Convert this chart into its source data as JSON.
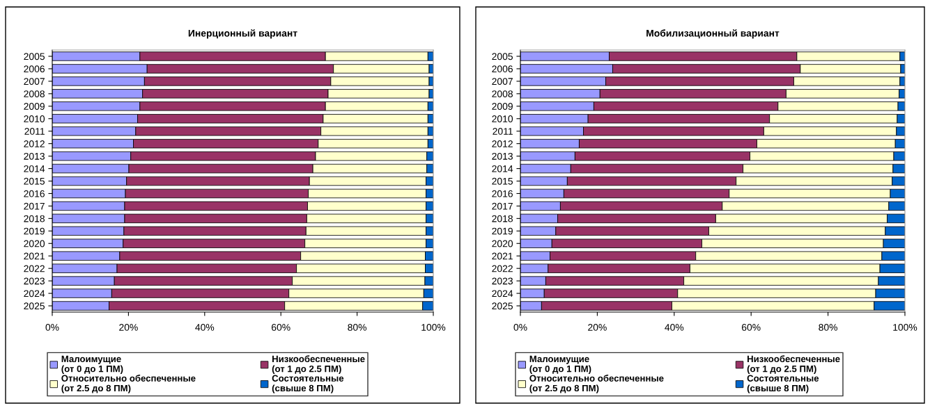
{
  "chart_data": [
    {
      "type": "bar",
      "title": "Инерционный вариант",
      "orientation": "horizontal",
      "stacked": true,
      "legend": "bottom",
      "grid": false,
      "categories": [
        "2005",
        "2006",
        "2007",
        "2008",
        "2009",
        "2010",
        "2011",
        "2012",
        "2013",
        "2014",
        "2015",
        "2016",
        "2017",
        "2018",
        "2019",
        "2020",
        "2021",
        "2022",
        "2023",
        "2024",
        "2025"
      ],
      "xlim": [
        0,
        100
      ],
      "xticks": [
        {
          "value": 0,
          "label": "0%"
        },
        {
          "value": 20,
          "label": "20%"
        },
        {
          "value": 40,
          "label": "40%"
        },
        {
          "value": 60,
          "label": "60%"
        },
        {
          "value": 80,
          "label": "80%"
        },
        {
          "value": 100,
          "label": "100%"
        }
      ],
      "series": [
        {
          "name": "Малоимущие\n(от 0 до 1 ПМ)",
          "color": "#9999ff",
          "values": [
            23.0,
            24.9,
            24.2,
            23.7,
            23.0,
            22.4,
            21.9,
            21.3,
            20.6,
            20.1,
            19.5,
            19.2,
            19.0,
            19.0,
            18.8,
            18.6,
            17.7,
            17.0,
            16.3,
            15.6,
            14.9
          ]
        },
        {
          "name": "Низкообеспеченные\n(от 1 до 2.5 ПМ)",
          "color": "#993366",
          "values": [
            48.7,
            48.9,
            48.9,
            48.7,
            48.7,
            48.7,
            48.6,
            48.5,
            48.5,
            48.3,
            48.0,
            48.0,
            48.0,
            47.8,
            47.8,
            47.7,
            47.5,
            47.1,
            46.7,
            46.5,
            46.1
          ]
        },
        {
          "name": "Относительно обеспеченные\n(от 2.5 до 8 ПМ)",
          "color": "#ffffcc",
          "values": [
            26.9,
            25.1,
            25.8,
            26.5,
            26.9,
            27.5,
            28.1,
            28.8,
            29.2,
            29.9,
            30.6,
            30.9,
            31.1,
            31.3,
            31.5,
            31.8,
            32.7,
            33.8,
            34.8,
            35.4,
            36.2
          ]
        },
        {
          "name": "Состоятельные\n(свыше 8 ПМ)",
          "color": "#0066cc",
          "values": [
            1.4,
            1.1,
            1.1,
            1.1,
            1.4,
            1.4,
            1.4,
            1.4,
            1.7,
            1.7,
            1.9,
            1.9,
            1.9,
            1.9,
            1.9,
            1.9,
            2.1,
            2.1,
            2.2,
            2.5,
            2.8
          ]
        }
      ]
    },
    {
      "type": "bar",
      "title": "Мобилизационный вариант",
      "orientation": "horizontal",
      "stacked": true,
      "legend": "bottom",
      "grid": false,
      "categories": [
        "2005",
        "2006",
        "2007",
        "2008",
        "2009",
        "2010",
        "2011",
        "2012",
        "2013",
        "2014",
        "2015",
        "2016",
        "2017",
        "2018",
        "2019",
        "2020",
        "2021",
        "2022",
        "2023",
        "2024",
        "2025"
      ],
      "xlim": [
        0,
        100
      ],
      "xticks": [
        {
          "value": 0,
          "label": "0%"
        },
        {
          "value": 20,
          "label": "20%"
        },
        {
          "value": 40,
          "label": "40%"
        },
        {
          "value": 60,
          "label": "60%"
        },
        {
          "value": 80,
          "label": "80%"
        },
        {
          "value": 100,
          "label": "100%"
        }
      ],
      "series": [
        {
          "name": "Малоимущие\n(от 0 до 1 ПМ)",
          "color": "#9999ff",
          "values": [
            23.1,
            24.0,
            22.2,
            20.7,
            19.1,
            17.6,
            16.4,
            15.3,
            14.2,
            13.1,
            12.2,
            11.3,
            10.4,
            9.7,
            9.2,
            8.2,
            7.7,
            7.2,
            6.6,
            6.2,
            5.5
          ]
        },
        {
          "name": "Низкообеспеченные\n(от 1 до 2.5 ПМ)",
          "color": "#993366",
          "values": [
            48.8,
            48.8,
            48.9,
            48.4,
            47.9,
            47.2,
            46.9,
            46.2,
            45.5,
            44.8,
            43.9,
            43.0,
            42.1,
            41.1,
            39.8,
            39.0,
            37.9,
            36.9,
            35.9,
            34.7,
            33.9
          ]
        },
        {
          "name": "Относительно обеспеченные\n(от 2.5 до 8 ПМ)",
          "color": "#ffffcc",
          "values": [
            26.8,
            26.1,
            27.6,
            29.4,
            31.2,
            33.2,
            34.5,
            36.0,
            37.4,
            39.0,
            40.6,
            41.9,
            43.3,
            44.6,
            45.9,
            47.2,
            48.4,
            49.4,
            50.6,
            51.5,
            52.6
          ]
        },
        {
          "name": "Состоятельные\n(свыше 8 ПМ)",
          "color": "#0066cc",
          "values": [
            1.3,
            1.1,
            1.3,
            1.5,
            1.8,
            2.0,
            2.2,
            2.5,
            2.9,
            3.1,
            3.3,
            3.8,
            4.2,
            4.6,
            5.1,
            5.6,
            6.0,
            6.5,
            6.9,
            7.6,
            8.0
          ]
        }
      ]
    }
  ]
}
